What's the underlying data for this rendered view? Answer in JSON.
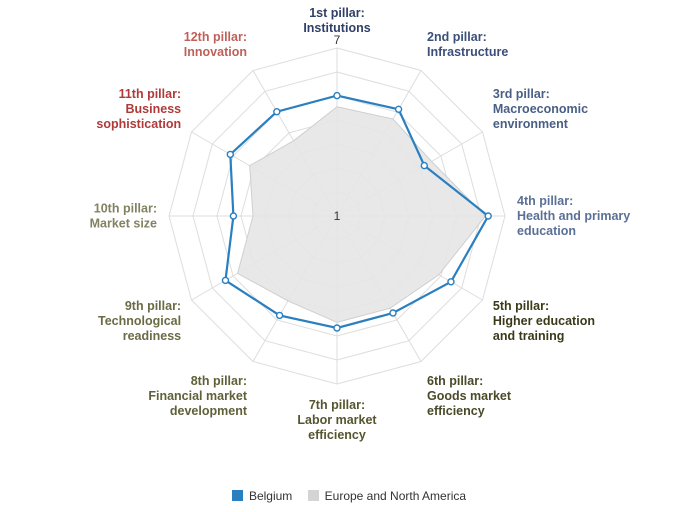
{
  "chart_data": {
    "type": "radar",
    "axes": [
      {
        "lines": [
          "1st pillar:",
          "Institutions"
        ],
        "color": "#2f3f66"
      },
      {
        "lines": [
          "2nd pillar:",
          "Infrastructure"
        ],
        "color": "#3b4f7a"
      },
      {
        "lines": [
          "3rd pillar:",
          "Macroeconomic",
          "environment"
        ],
        "color": "#4a5f85"
      },
      {
        "lines": [
          "4th pillar:",
          "Health and primary",
          "education"
        ],
        "color": "#5a7096"
      },
      {
        "lines": [
          "5th pillar:",
          "Higher education",
          "and training"
        ],
        "color": "#3a3a1a"
      },
      {
        "lines": [
          "6th pillar:",
          "Goods market",
          "efficiency"
        ],
        "color": "#4a4a28"
      },
      {
        "lines": [
          "7th pillar:",
          "Labor market",
          "efficiency"
        ],
        "color": "#55552f"
      },
      {
        "lines": [
          "8th pillar:",
          "Financial market",
          "development"
        ],
        "color": "#60603a"
      },
      {
        "lines": [
          "9th pillar:",
          "Technological",
          "readiness"
        ],
        "color": "#6b6b45"
      },
      {
        "lines": [
          "10th pillar:",
          "Market size"
        ],
        "color": "#828262"
      },
      {
        "lines": [
          "11th pillar:",
          "Business",
          "sophistication"
        ],
        "color": "#b03a3a"
      },
      {
        "lines": [
          "12th pillar:",
          "Innovation"
        ],
        "color": "#c0605a"
      }
    ],
    "rmin": 1,
    "rmax": 7,
    "tick_labels": [
      "7",
      "1"
    ],
    "grid": true,
    "series": [
      {
        "name": "Belgium",
        "color": "#2a7fc1",
        "values": [
          5.3,
          5.4,
          4.6,
          6.4,
          5.7,
          5.0,
          5.0,
          5.1,
          5.6,
          4.7,
          5.4,
          5.3
        ]
      },
      {
        "name": "Europe and North America",
        "color": "#e6e6e6",
        "values": [
          4.9,
          5.0,
          4.9,
          6.3,
          5.2,
          4.8,
          4.8,
          4.5,
          5.1,
          4.0,
          4.6,
          4.1
        ]
      }
    ],
    "legend_position": "bottom"
  }
}
